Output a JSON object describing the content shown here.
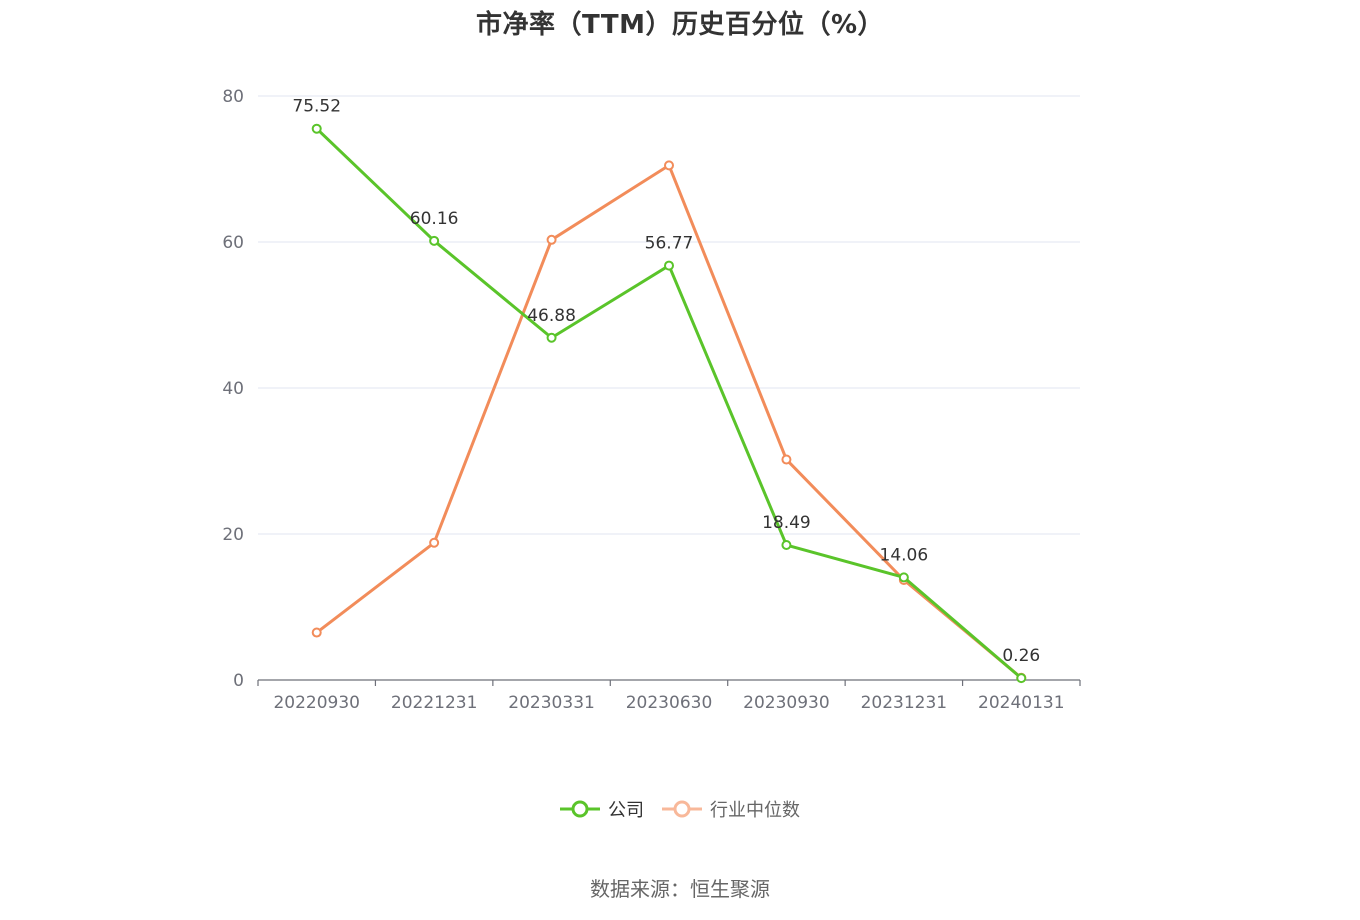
{
  "chart_data": {
    "type": "line",
    "title": "市净率（TTM）历史百分位（%）",
    "categories": [
      "20220930",
      "20221231",
      "20230331",
      "20230630",
      "20230930",
      "20231231",
      "20240131"
    ],
    "ylim": [
      0,
      80
    ],
    "yticks": [
      0,
      20,
      40,
      60,
      80
    ],
    "grid": true,
    "legend_position": "bottom",
    "series": [
      {
        "name": "公司",
        "color": "#5ac42a",
        "values": [
          75.52,
          60.16,
          46.88,
          56.77,
          18.49,
          14.06,
          0.26
        ],
        "labels": [
          "75.52",
          "60.16",
          "46.88",
          "56.77",
          "18.49",
          "14.06",
          "0.26"
        ]
      },
      {
        "name": "行业中位数",
        "color": "#f28c5a",
        "values": [
          6.5,
          18.8,
          60.3,
          70.5,
          30.2,
          13.7,
          0.3
        ]
      }
    ]
  },
  "source": "数据来源：恒生聚源"
}
